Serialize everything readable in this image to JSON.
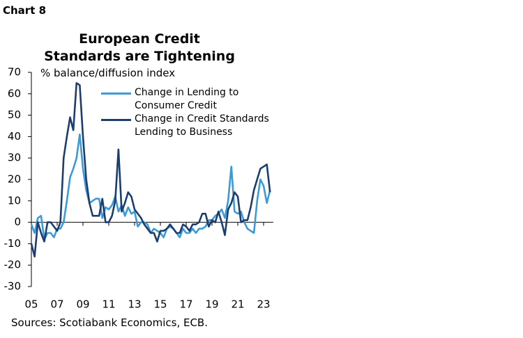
{
  "chart_data": {
    "type": "line",
    "chart_label": "Chart 8",
    "title": "European Credit Standards are Tightening",
    "ylabel": "% balance/diffusion index",
    "source": "Sources: Scotiabank Economics, ECB.",
    "ylim": [
      -30,
      70
    ],
    "yticks": [
      -30,
      -20,
      -10,
      0,
      10,
      20,
      30,
      40,
      50,
      60,
      70
    ],
    "xlim": [
      2005,
      2023.75
    ],
    "xticks": [
      {
        "value": 2005,
        "label": "05"
      },
      {
        "value": 2007,
        "label": "07"
      },
      {
        "value": 2009,
        "label": "09"
      },
      {
        "value": 2011,
        "label": "11"
      },
      {
        "value": 2013,
        "label": "13"
      },
      {
        "value": 2015,
        "label": "15"
      },
      {
        "value": 2017,
        "label": "17"
      },
      {
        "value": 2019,
        "label": "19"
      },
      {
        "value": 2021,
        "label": "21"
      },
      {
        "value": 2023,
        "label": "23"
      }
    ],
    "x": [
      2005,
      2005.25,
      2005.5,
      2005.75,
      2006,
      2006.25,
      2006.5,
      2006.75,
      2007,
      2007.25,
      2007.5,
      2007.75,
      2008,
      2008.25,
      2008.5,
      2008.75,
      2009,
      2009.25,
      2009.5,
      2009.75,
      2010,
      2010.25,
      2010.5,
      2010.75,
      2011,
      2011.25,
      2011.5,
      2011.75,
      2012,
      2012.25,
      2012.5,
      2012.75,
      2013,
      2013.25,
      2013.5,
      2013.75,
      2014,
      2014.25,
      2014.5,
      2014.75,
      2015,
      2015.25,
      2015.5,
      2015.75,
      2016,
      2016.25,
      2016.5,
      2016.75,
      2017,
      2017.25,
      2017.5,
      2017.75,
      2018,
      2018.25,
      2018.5,
      2018.75,
      2019,
      2019.25,
      2019.5,
      2019.75,
      2020,
      2020.25,
      2020.5,
      2020.75,
      2021,
      2021.25,
      2021.5,
      2021.75,
      2022,
      2022.25,
      2022.5,
      2022.75,
      2023,
      2023.25,
      2023.5
    ],
    "legend": "top-inside",
    "series": [
      {
        "name": "Change in Lending to Consumer Credit",
        "color": "#3b9ad8",
        "values": [
          -1,
          -5,
          2,
          3,
          -8,
          -5,
          -5,
          -7,
          -3,
          -3,
          0,
          10,
          21,
          25,
          30,
          41,
          25,
          15,
          9,
          10,
          11,
          11,
          2,
          7,
          6,
          8,
          12,
          5,
          8,
          3,
          7,
          4,
          5,
          -2,
          0,
          0,
          -1,
          -5,
          -3,
          -4,
          -5,
          -7,
          -3,
          -2,
          -3,
          -5,
          -7,
          -3,
          -5,
          -5,
          -3,
          -5,
          -3,
          -3,
          -2,
          1,
          1,
          3,
          4,
          6,
          2,
          10,
          26,
          5,
          4,
          5,
          0,
          -3,
          -4,
          -5,
          10,
          20,
          17,
          9,
          15
        ]
      },
      {
        "name": "Change in Credit Standards Lending to Business",
        "color": "#1c3d6e",
        "values": [
          -10,
          -16,
          0,
          -5,
          -9,
          0,
          0,
          -2,
          -4,
          0,
          30,
          40,
          49,
          43,
          65,
          64,
          40,
          20,
          9,
          3,
          3,
          3,
          11,
          0,
          0,
          3,
          10,
          34,
          5,
          9,
          14,
          12,
          6,
          4,
          2,
          -1,
          -3,
          -5,
          -5,
          -9,
          -4,
          -4,
          -3,
          -1,
          -3,
          -5,
          -5,
          -1,
          -2,
          -4,
          -1,
          -1,
          0,
          4,
          4,
          -2,
          1,
          0,
          5,
          0,
          -6,
          6,
          9,
          14,
          12,
          0,
          1,
          1,
          7,
          15,
          20,
          25,
          26,
          27,
          14
        ]
      }
    ]
  }
}
